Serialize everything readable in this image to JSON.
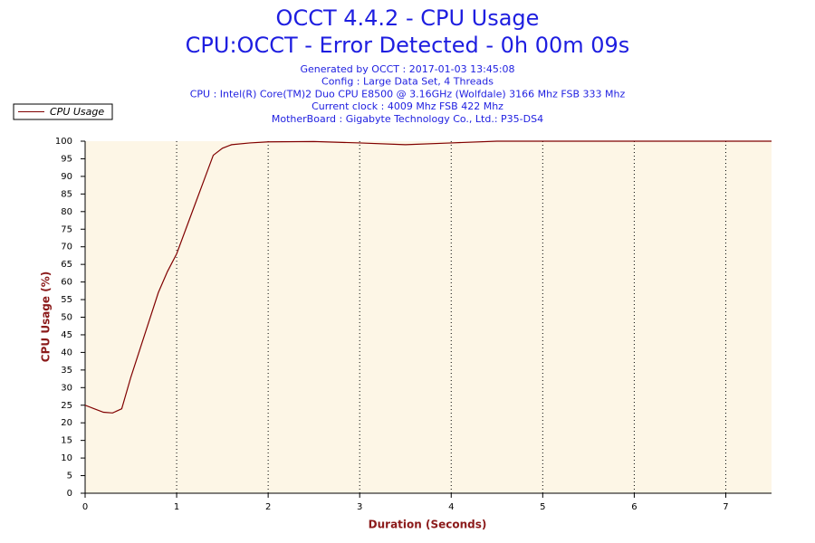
{
  "chart_data": {
    "type": "line",
    "title": "OCCT 4.4.2 - CPU Usage",
    "subtitle": "CPU:OCCT - Error Detected - 0h 00m 09s",
    "annotations": [
      "Generated by OCCT : 2017-01-03 13:45:08",
      "Config : Large Data Set, 4 Threads",
      "CPU : Intel(R) Core(TM)2 Duo CPU E8500 @ 3.16GHz (Wolfdale) 3166 Mhz FSB 333 Mhz",
      "Current clock : 4009 Mhz FSB 422 Mhz",
      "MotherBoard : Gigabyte Technology Co., Ltd.: P35-DS4"
    ],
    "x_label": "Duration (Seconds)",
    "y_label": "CPU Usage (%)",
    "x": [
      0,
      0.1,
      0.2,
      0.3,
      0.4,
      0.5,
      0.6,
      0.7,
      0.8,
      0.9,
      1.0,
      1.1,
      1.2,
      1.3,
      1.4,
      1.5,
      1.6,
      1.8,
      2.0,
      2.5,
      3.0,
      3.5,
      4.0,
      4.5,
      5,
      6,
      7,
      7.5
    ],
    "series": [
      {
        "name": "CPU Usage",
        "color": "#800000",
        "values": [
          25,
          24,
          23,
          22.8,
          24,
          33,
          41,
          49,
          57,
          63,
          68,
          75,
          82,
          89,
          96,
          98,
          99,
          99.5,
          99.8,
          99.9,
          99.5,
          99,
          99.5,
          100,
          100,
          100,
          100,
          100
        ]
      }
    ],
    "xlim": [
      0,
      7.5
    ],
    "xticks": [
      0,
      1,
      2,
      3,
      4,
      5,
      6,
      7
    ],
    "ylim": [
      0,
      100
    ],
    "yticks": [
      0,
      5,
      10,
      15,
      20,
      25,
      30,
      35,
      40,
      45,
      50,
      55,
      60,
      65,
      70,
      75,
      80,
      85,
      90,
      95,
      100
    ],
    "grid": true,
    "legend": "top-left"
  }
}
